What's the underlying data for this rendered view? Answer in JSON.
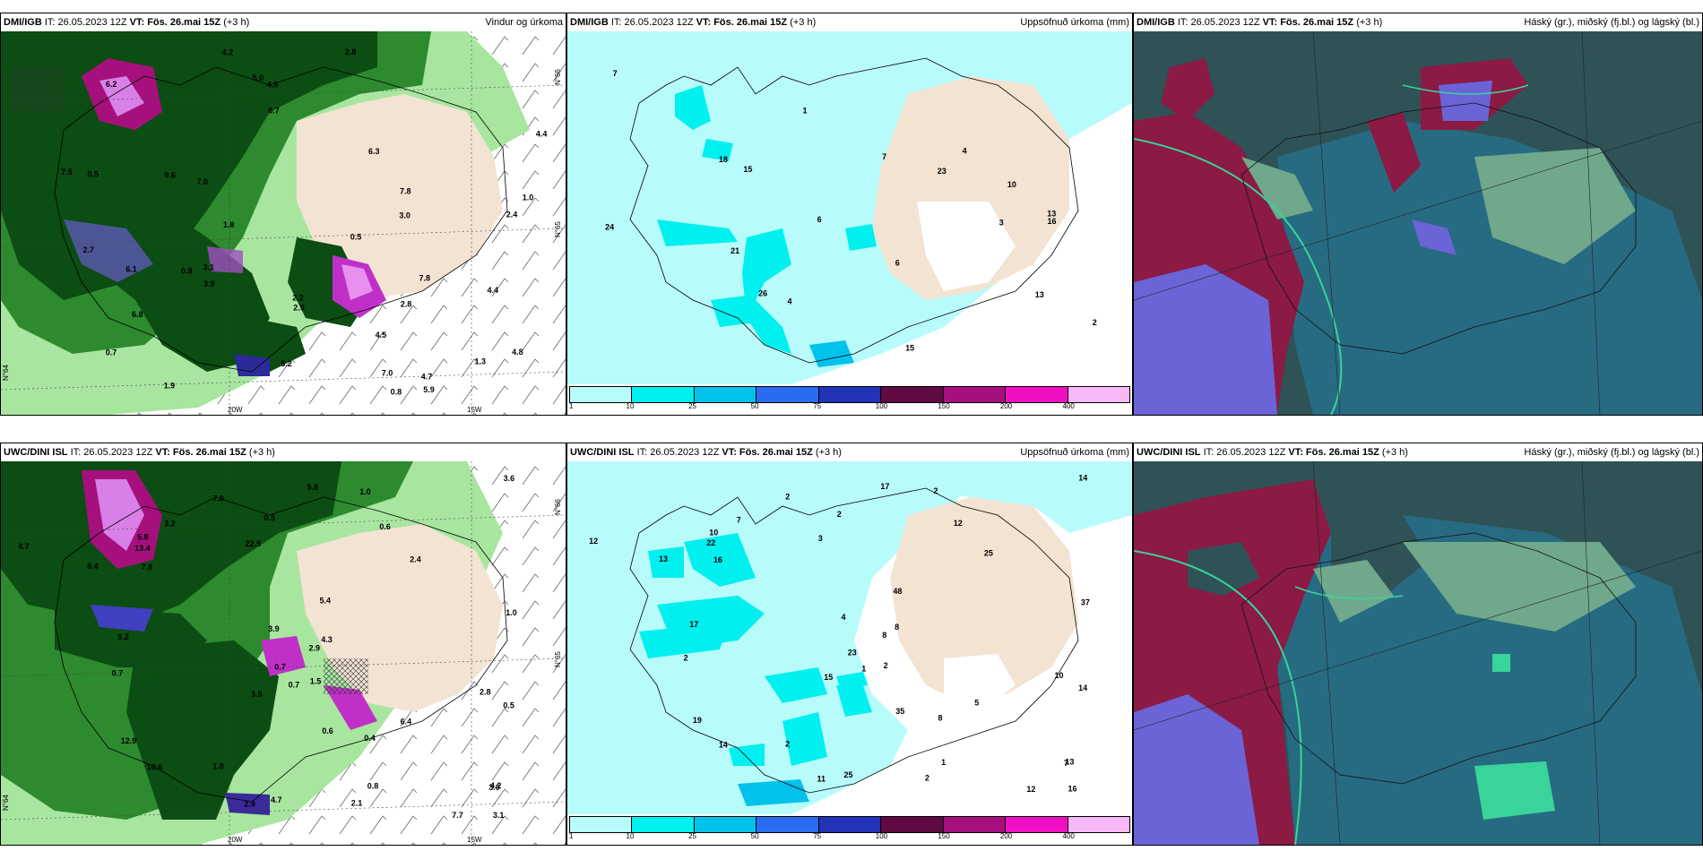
{
  "rows": [
    {
      "wind": {
        "model": "DMI/IGB",
        "init": "IT: 26.05.2023 12Z",
        "valid": "VT: Fös. 26.mai 15Z",
        "lead": "(+3 h)",
        "product": "Vindur og úrkoma",
        "lon_labels": [
          "20W",
          "15W"
        ],
        "lat_labels": [
          "N°66",
          "N°65",
          "N°64"
        ],
        "values": [
          "2.8",
          "1.3",
          "1.9",
          "2.2",
          "7.0",
          "3.0",
          "2.9",
          "2.8",
          "0.7",
          "1.0",
          "0.9",
          "2.4",
          "6.2",
          "5.9",
          "3.1",
          "4.9",
          "5.0",
          "7.8",
          "6.8",
          "6.3",
          "5.2",
          "7.8",
          "4.7",
          "4.4",
          "7.0",
          "7.5",
          "9.6",
          "4.2",
          "4.8",
          "4.4",
          "6.1",
          "4.5",
          "3.9",
          "2.7",
          "0.5",
          "0.8",
          "0.7",
          "0.5",
          "1.8"
        ]
      },
      "precip": {
        "model": "DMI/IGB",
        "init": "IT: 26.05.2023 12Z",
        "valid": "VT: Fös. 26.mai 15Z",
        "lead": "(+3 h)",
        "product": "Uppsöfnuð úrkoma (mm)",
        "values": [
          "3",
          "4",
          "7",
          "13",
          "15",
          "6",
          "10",
          "13",
          "4",
          "2",
          "6",
          "21",
          "23",
          "26",
          "15",
          "18",
          "16",
          "24",
          "7",
          "1"
        ]
      },
      "cloud": {
        "model": "DMI/IGB",
        "init": "IT: 26.05.2023 12Z",
        "valid": "VT: Fös. 26.mai 15Z",
        "lead": "(+3 h)",
        "product": "Háský (gr.), miðský (fj.bl.) og lágský (bl.)"
      }
    },
    {
      "wind": {
        "model": "UWC/DINI ISL",
        "init": "IT: 26.05.2023 12Z",
        "valid": "VT: Fös. 26.mai 15Z",
        "lead": "(+3 h)",
        "product": "",
        "lon_labels": [
          "20W",
          "15W"
        ],
        "lat_labels": [
          "N°66",
          "N°65",
          "N°64"
        ],
        "values": [
          "0.4",
          "2.9",
          "2.8",
          "3.2",
          "4.3",
          "4.2",
          "3.5",
          "0.5",
          "0.6",
          "0.7",
          "1.0",
          "0.6",
          "2.4",
          "3.6",
          "3.1",
          "5.8",
          "10.6",
          "4.7",
          "7.8",
          "13.4",
          "12.9",
          "8.4",
          "9.2",
          "7.7",
          "5.4",
          "4.7",
          "5.8",
          "3.0",
          "2.9",
          "6.4",
          "22.5",
          "1.0",
          "0.8",
          "0.7",
          "2.1",
          "7.0",
          "3.9",
          "1.5",
          "0.7",
          "1.0",
          "0.5"
        ]
      },
      "precip": {
        "model": "UWC/DINI ISL",
        "init": "IT: 26.05.2023 12Z",
        "valid": "VT: Fös. 26.mai 15Z",
        "lead": "(+3 h)",
        "product": "Uppsöfnuð úrkoma (mm)",
        "values": [
          "8",
          "8",
          "10",
          "7",
          "8",
          "13",
          "15",
          "14",
          "12",
          "23",
          "37",
          "35",
          "25",
          "14",
          "16",
          "17",
          "14",
          "12",
          "16",
          "22",
          "19",
          "13",
          "17",
          "12",
          "48",
          "25",
          "10",
          "7",
          "11",
          "5",
          "3",
          "2",
          "1",
          "1",
          "2",
          "2",
          "4",
          "2",
          "2",
          "2",
          "2"
        ]
      },
      "cloud": {
        "model": "UWC/DINI ISL",
        "init": "IT: 26.05.2023 12Z",
        "valid": "VT: Fös. 26.mai 15Z",
        "lead": "(+3 h)",
        "product": "Háský (gr.), miðský (fj.bl.) og lágský (bl.)"
      }
    }
  ],
  "colorbar": {
    "ticks": [
      "1",
      "10",
      "25",
      "50",
      "75",
      "100",
      "150",
      "200",
      "400"
    ],
    "colors": [
      "#b8fbfb",
      "#00efef",
      "#00c2ea",
      "#2a6cf0",
      "#2233b8",
      "#600a44",
      "#a6107c",
      "#f010c4",
      "#f6b8f6"
    ]
  },
  "palette": {
    "wind_dark": "#0b4d12",
    "wind_mid": "#2e8a2e",
    "wind_light": "#a8e6a0",
    "land_beige": "#f3e3d3",
    "precip_sea": "#b8fbfb",
    "cloud_base": "#2f5257",
    "cloud_teal": "#276b82",
    "cloud_maroon": "#8b1a44",
    "cloud_violet": "#6a64d6",
    "cloud_green": "#6fa88a"
  }
}
